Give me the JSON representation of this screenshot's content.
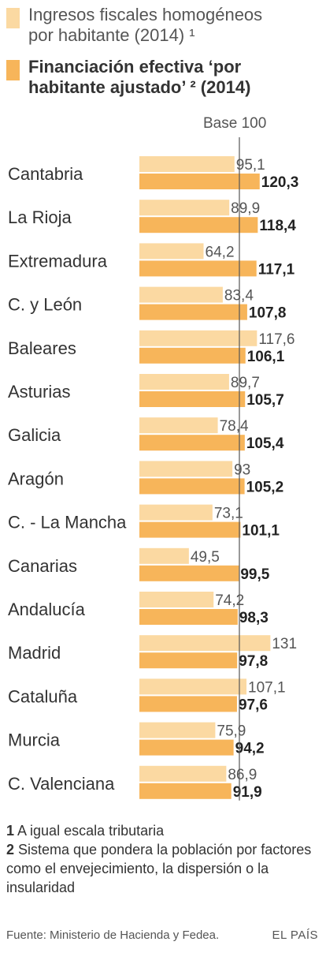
{
  "legend": {
    "series1_line1": "Ingresos fiscales homogéneos",
    "series1_line2": "por habitante (2014) ¹",
    "series2_line1": "Financiación efectiva ‘por",
    "series2_line2": "habitante ajustado’ ² (2014)"
  },
  "colors": {
    "series1": "#fbd9a2",
    "series2": "#f7b55a",
    "baseline": "#555555"
  },
  "chart_data": {
    "type": "bar",
    "orientation": "horizontal",
    "baseline_label": "Base 100",
    "baseline_value": 100,
    "categories": [
      "Cantabria",
      "La Rioja",
      "Extremadura",
      "C. y León",
      "Baleares",
      "Asturias",
      "Galicia",
      "Aragón",
      "C. - La Mancha",
      "Canarias",
      "Andalucía",
      "Madrid",
      "Cataluña",
      "Murcia",
      "C. Valenciana"
    ],
    "series": [
      {
        "name": "Ingresos fiscales homogéneos por habitante (2014)",
        "values": [
          95.1,
          89.9,
          64.2,
          83.4,
          117.6,
          89.7,
          78.4,
          93,
          73.1,
          49.5,
          74.2,
          131,
          107.1,
          75.9,
          86.9
        ],
        "labels": [
          "95,1",
          "89,9",
          "64,2",
          "83,4",
          "117,6",
          "89,7",
          "78,4",
          "93",
          "73,1",
          "49,5",
          "74,2",
          "131",
          "107,1",
          "75,9",
          "86,9"
        ]
      },
      {
        "name": "Financiación efectiva ‘por habitante ajustado’ (2014)",
        "values": [
          120.3,
          118.4,
          117.1,
          107.8,
          106.1,
          105.7,
          105.4,
          105.2,
          101.1,
          99.5,
          98.3,
          97.8,
          97.6,
          94.2,
          91.9
        ],
        "labels": [
          "120,3",
          "118,4",
          "117,1",
          "107,8",
          "106,1",
          "105,7",
          "105,4",
          "105,2",
          "101,1",
          "99,5",
          "98,3",
          "97,8",
          "97,6",
          "94,2",
          "91,9"
        ]
      }
    ]
  },
  "notes": {
    "n1_marker": "1",
    "n1_text": " A igual escala tributaria",
    "n2_marker": "2",
    "n2_text": " Sistema que pondera la población por factores como el envejecimiento, la dispersión o la insularidad"
  },
  "footer": {
    "source": "Fuente: Ministerio de Hacienda y Fedea.",
    "brand": "EL PAÍS"
  }
}
